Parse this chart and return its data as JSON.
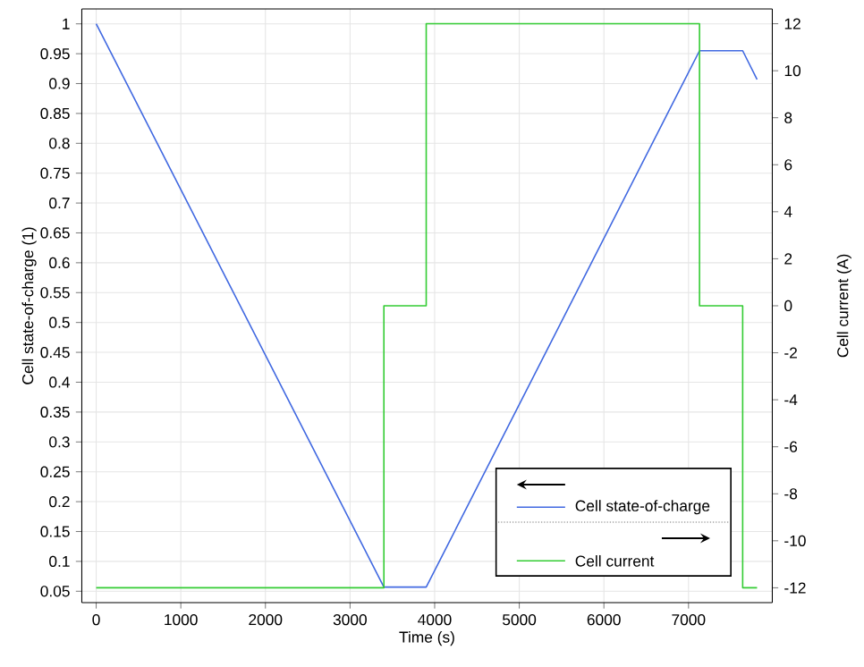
{
  "chart_data": {
    "type": "line",
    "xlabel": "Time (s)",
    "ylabel": "Cell state-of-charge (1)",
    "y2label": "Cell current (A)",
    "xlim": [
      -170,
      7990
    ],
    "xticks": [
      0,
      1000,
      2000,
      3000,
      4000,
      5000,
      6000,
      7000
    ],
    "ylim": [
      0.031,
      1.025
    ],
    "yticks": [
      0.05,
      0.1,
      0.15,
      0.2,
      0.25,
      0.3,
      0.35,
      0.4,
      0.45,
      0.5,
      0.55,
      0.6,
      0.65,
      0.7,
      0.75,
      0.8,
      0.85,
      0.9,
      0.95,
      1
    ],
    "y2lim": [
      -12.63,
      12.63
    ],
    "y2ticks": [
      -12,
      -10,
      -8,
      -6,
      -4,
      -2,
      0,
      2,
      4,
      6,
      8,
      10,
      12
    ],
    "grid": true,
    "legend": "bottom right",
    "series": [
      {
        "name": "Cell state-of-charge",
        "color": "#4169e1",
        "x": [
          0,
          3400,
          3900,
          7130,
          7640,
          7810
        ],
        "values": [
          1,
          0.057,
          0.057,
          0.955,
          0.955,
          0.907
        ]
      },
      {
        "name": "Cell current",
        "color": "#33cc33",
        "axis": "y2",
        "x": [
          0,
          3400,
          3400,
          3900,
          3900,
          7130,
          7130,
          7640,
          7640,
          7810
        ],
        "values": [
          -12,
          -12,
          0,
          0,
          12,
          12,
          0,
          0,
          -12,
          -12
        ]
      }
    ]
  }
}
